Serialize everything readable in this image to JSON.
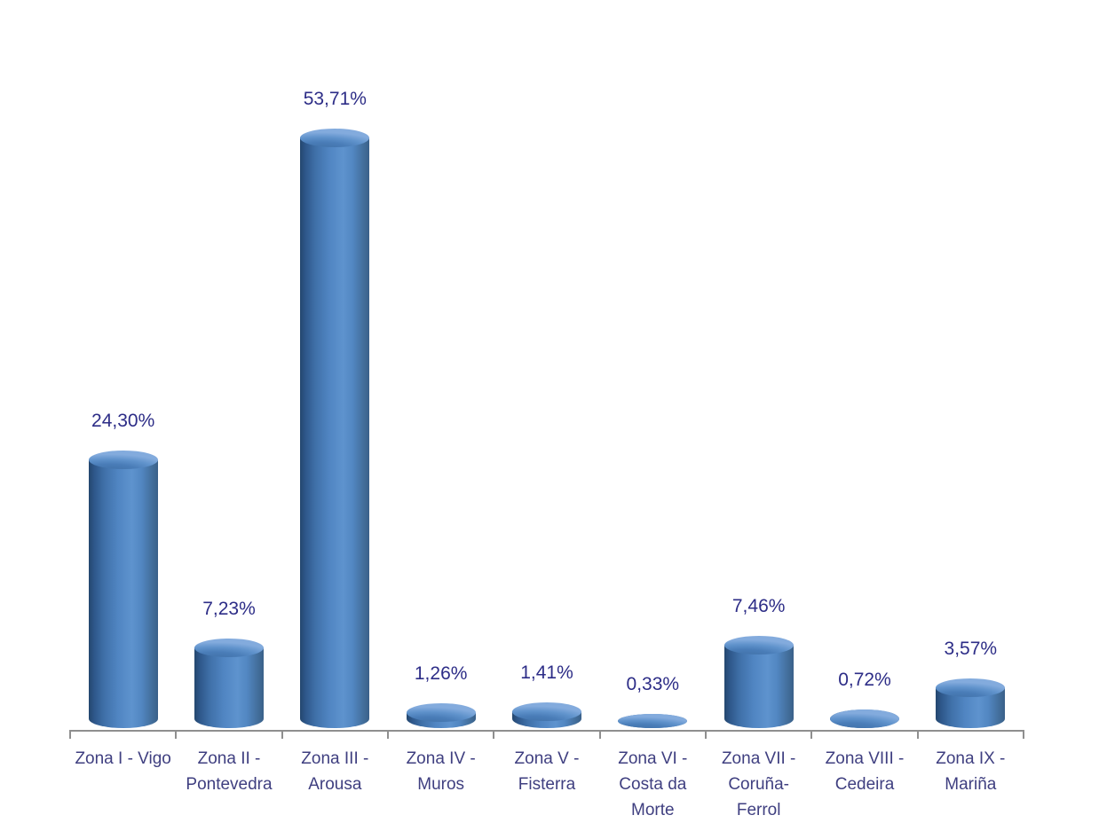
{
  "chart_data": {
    "type": "bar",
    "subtype": "cylinder-3d",
    "title": "",
    "xlabel": "",
    "ylabel": "",
    "grid": false,
    "legend": "none",
    "value_format": "percent-comma-decimal",
    "ylim": [
      0,
      60
    ],
    "categories": [
      "Zona I - Vigo",
      "Zona II - Pontevedra",
      "Zona III - Arousa",
      "Zona IV - Muros",
      "Zona V - Fisterra",
      "Zona VI - Costa da Morte",
      "Zona VII - Coruña-Ferrol",
      "Zona VIII - Cedeira",
      "Zona IX - Mariña"
    ],
    "category_lines": [
      [
        "Zona I - Vigo"
      ],
      [
        "Zona II -",
        "Pontevedra"
      ],
      [
        "Zona III -",
        "Arousa"
      ],
      [
        "Zona IV -",
        "Muros"
      ],
      [
        "Zona V -",
        "Fisterra"
      ],
      [
        "Zona VI -",
        "Costa da",
        "Morte"
      ],
      [
        "Zona VII -",
        "Coruña-",
        "Ferrol"
      ],
      [
        "Zona VIII -",
        "Cedeira"
      ],
      [
        "Zona IX -",
        "Mariña"
      ]
    ],
    "values": [
      24.3,
      7.23,
      53.71,
      1.26,
      1.41,
      0.33,
      7.46,
      0.72,
      3.57
    ],
    "value_labels": [
      "24,30%",
      "7,23%",
      "53,71%",
      "1,26%",
      "1,41%",
      "0,33%",
      "7,46%",
      "0,72%",
      "3,57%"
    ],
    "colors": {
      "background": "#ffffff",
      "bar_fill": "#4f81bd",
      "bar_dark": "#24476e",
      "bar_light": "#5e93ce",
      "data_label": "#2d2d87",
      "axis_label": "#3f3f80",
      "axis_line": "#8f8f8f"
    }
  }
}
